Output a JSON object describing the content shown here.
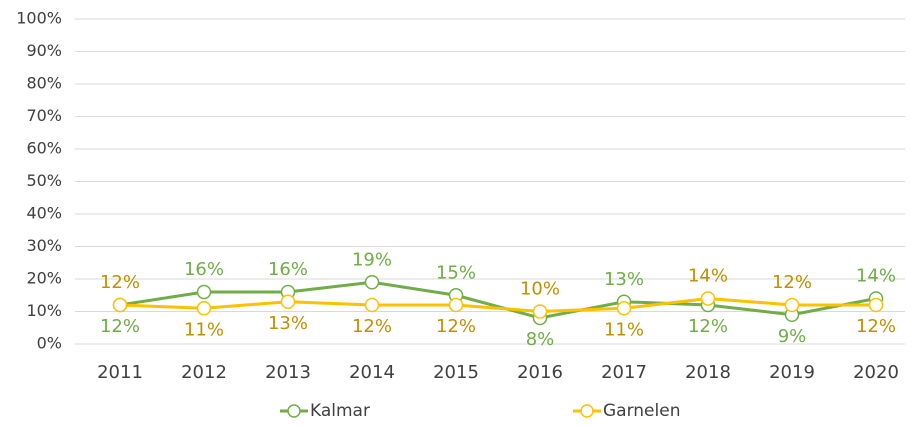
{
  "chart_data": {
    "type": "line",
    "categories": [
      "2011",
      "2012",
      "2013",
      "2014",
      "2015",
      "2016",
      "2017",
      "2018",
      "2019",
      "2020"
    ],
    "series": [
      {
        "name": "Kalmar",
        "color": "#70ad47",
        "label_color": "#70ad47",
        "values": [
          12,
          16,
          16,
          19,
          15,
          8,
          13,
          12,
          9,
          14
        ],
        "value_labels": [
          "12%",
          "16%",
          "16%",
          "19%",
          "15%",
          "8%",
          "13%",
          "12%",
          "9%",
          "14%"
        ]
      },
      {
        "name": "Garnelen",
        "color": "#ffc000",
        "label_color": "#bf9000",
        "values": [
          12,
          11,
          13,
          12,
          12,
          10,
          11,
          14,
          12,
          12
        ],
        "value_labels": [
          "12%",
          "11%",
          "13%",
          "12%",
          "12%",
          "10%",
          "11%",
          "14%",
          "12%",
          "12%"
        ]
      }
    ],
    "ylim": [
      0,
      100
    ],
    "yticks": [
      {
        "value": 0,
        "label": "0%"
      },
      {
        "value": 10,
        "label": "10%"
      },
      {
        "value": 20,
        "label": "20%"
      },
      {
        "value": 30,
        "label": "30%"
      },
      {
        "value": 40,
        "label": "40%"
      },
      {
        "value": 50,
        "label": "50%"
      },
      {
        "value": 60,
        "label": "60%"
      },
      {
        "value": 70,
        "label": "70%"
      },
      {
        "value": 80,
        "label": "80%"
      },
      {
        "value": 90,
        "label": "90%"
      },
      {
        "value": 100,
        "label": "100%"
      }
    ],
    "grid": true,
    "legend": "bottom"
  }
}
